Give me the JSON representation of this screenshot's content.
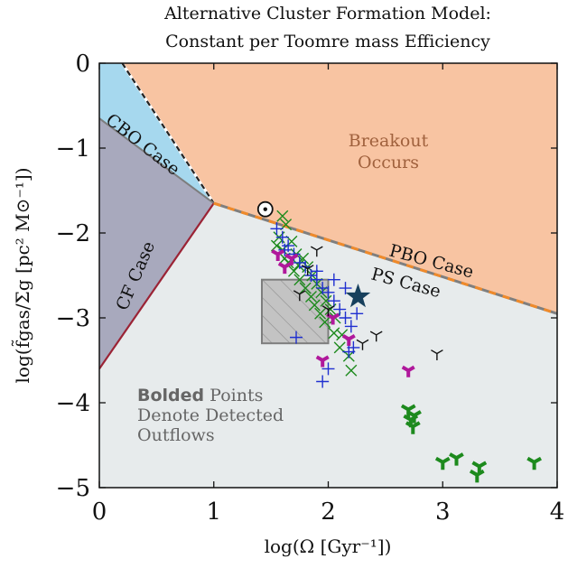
{
  "chart_data": {
    "type": "scatter",
    "title_line1": "Alternative Cluster Formation Model:",
    "title_line2": "Constant per Toomre mass Efficiency",
    "xlabel": "log(Ω [Gyr⁻¹])",
    "ylabel": "log(f̃gas/Σg [pc² M⊙⁻¹])",
    "xlim": [
      0,
      4
    ],
    "ylim": [
      -5,
      0
    ],
    "xticks": [
      "0",
      "1",
      "2",
      "3",
      "4"
    ],
    "yticks": [
      "0",
      "−1",
      "−2",
      "−3",
      "−4",
      "−5"
    ],
    "colors": {
      "breakout": "#f8c4a2",
      "cbo": "#a6d8ee",
      "cf": "#a8a9bd",
      "ps": "#e7ebec",
      "cf_boundary": "#9b2335",
      "pbo_dash_orange": "#f08a2a",
      "pbo_dash_gray": "#7f7f7f",
      "green": "#1d8a1d",
      "blue": "#1f2fd0",
      "magenta": "#b0189b",
      "black": "#111111",
      "star": "#17405c",
      "box_fill": "#bdbdbd",
      "box_edge": "#7d7d7d"
    },
    "regions": {
      "breakout_label1": "Breakout",
      "breakout_label2": "Occurs",
      "cbo_label": "CBO Case",
      "cf_label": "CF Case",
      "pbo_label": "PBO Case",
      "ps_label": "PS Case"
    },
    "boundaries": {
      "vertex": [
        1.0,
        -1.65
      ],
      "cbo_top": [
        0.2,
        0
      ],
      "cbo_left": [
        0,
        -0.65
      ],
      "cf_left": [
        0,
        -3.6
      ],
      "pbo_right": [
        4,
        -2.95
      ]
    },
    "note": {
      "bold": "Bolded",
      "line1_rest": " Points",
      "line2": "Denote Detected",
      "line3": "Outflows"
    },
    "box": {
      "x": [
        1.42,
        2.0
      ],
      "y": [
        -3.3,
        -2.55
      ]
    },
    "sun": {
      "x": 1.45,
      "y": -1.72
    },
    "star": {
      "x": 2.26,
      "y": -2.75
    },
    "series": [
      {
        "marker": "x",
        "color": "green",
        "points": [
          [
            1.6,
            -1.8
          ],
          [
            1.63,
            -1.9
          ],
          [
            1.57,
            -2.05
          ],
          [
            1.68,
            -2.1
          ],
          [
            1.6,
            -2.2
          ],
          [
            1.72,
            -2.25
          ],
          [
            1.65,
            -2.35
          ],
          [
            1.78,
            -2.3
          ],
          [
            1.7,
            -2.45
          ],
          [
            1.82,
            -2.4
          ],
          [
            1.75,
            -2.55
          ],
          [
            1.86,
            -2.5
          ],
          [
            1.8,
            -2.65
          ],
          [
            1.9,
            -2.6
          ],
          [
            1.85,
            -2.75
          ],
          [
            1.94,
            -2.7
          ],
          [
            1.88,
            -2.85
          ],
          [
            1.98,
            -2.8
          ],
          [
            1.93,
            -2.95
          ],
          [
            2.02,
            -2.9
          ],
          [
            1.97,
            -3.05
          ],
          [
            2.06,
            -3.0
          ],
          [
            2.05,
            -3.18
          ],
          [
            2.12,
            -3.2
          ],
          [
            2.1,
            -3.35
          ],
          [
            2.18,
            -3.45
          ],
          [
            2.2,
            -3.62
          ],
          [
            1.55,
            -2.15
          ],
          [
            1.62,
            -2.3
          ],
          [
            1.74,
            -2.38
          ]
        ]
      },
      {
        "marker": "+",
        "color": "blue",
        "points": [
          [
            1.55,
            -1.95
          ],
          [
            1.6,
            -2.05
          ],
          [
            1.65,
            -2.15
          ],
          [
            1.7,
            -2.25
          ],
          [
            1.75,
            -2.35
          ],
          [
            1.8,
            -2.4
          ],
          [
            1.85,
            -2.5
          ],
          [
            1.9,
            -2.55
          ],
          [
            1.95,
            -2.65
          ],
          [
            2.0,
            -2.7
          ],
          [
            2.05,
            -2.8
          ],
          [
            2.1,
            -2.9
          ],
          [
            2.15,
            -3.0
          ],
          [
            2.2,
            -3.1
          ],
          [
            2.05,
            -2.55
          ],
          [
            2.15,
            -2.65
          ],
          [
            2.25,
            -2.95
          ],
          [
            2.22,
            -3.35
          ],
          [
            2.18,
            -3.4
          ],
          [
            2.0,
            -3.6
          ],
          [
            1.95,
            -3.75
          ],
          [
            1.72,
            -3.23
          ],
          [
            1.9,
            -2.45
          ],
          [
            1.62,
            -2.2
          ]
        ]
      },
      {
        "marker": "tri",
        "color": "magenta",
        "points": [
          [
            1.56,
            -2.25
          ],
          [
            1.68,
            -2.3
          ],
          [
            1.62,
            -2.4
          ],
          [
            2.04,
            -3.0
          ],
          [
            2.18,
            -3.25
          ],
          [
            1.95,
            -3.5
          ],
          [
            2.7,
            -3.62
          ]
        ]
      },
      {
        "marker": "tri",
        "color": "black",
        "points": [
          [
            1.82,
            -2.42
          ],
          [
            1.75,
            -2.72
          ],
          [
            2.42,
            -3.2
          ],
          [
            2.3,
            -3.3
          ],
          [
            2.95,
            -3.42
          ],
          [
            2.0,
            -2.9
          ],
          [
            1.9,
            -2.2
          ]
        ]
      },
      {
        "marker": "tri-bold",
        "color": "green",
        "points": [
          [
            2.7,
            -4.08
          ],
          [
            2.72,
            -4.2
          ],
          [
            2.74,
            -4.28
          ],
          [
            2.75,
            -4.15
          ],
          [
            3.0,
            -4.7
          ],
          [
            3.12,
            -4.65
          ],
          [
            3.32,
            -4.75
          ],
          [
            3.3,
            -4.85
          ],
          [
            3.8,
            -4.7
          ]
        ]
      }
    ]
  }
}
